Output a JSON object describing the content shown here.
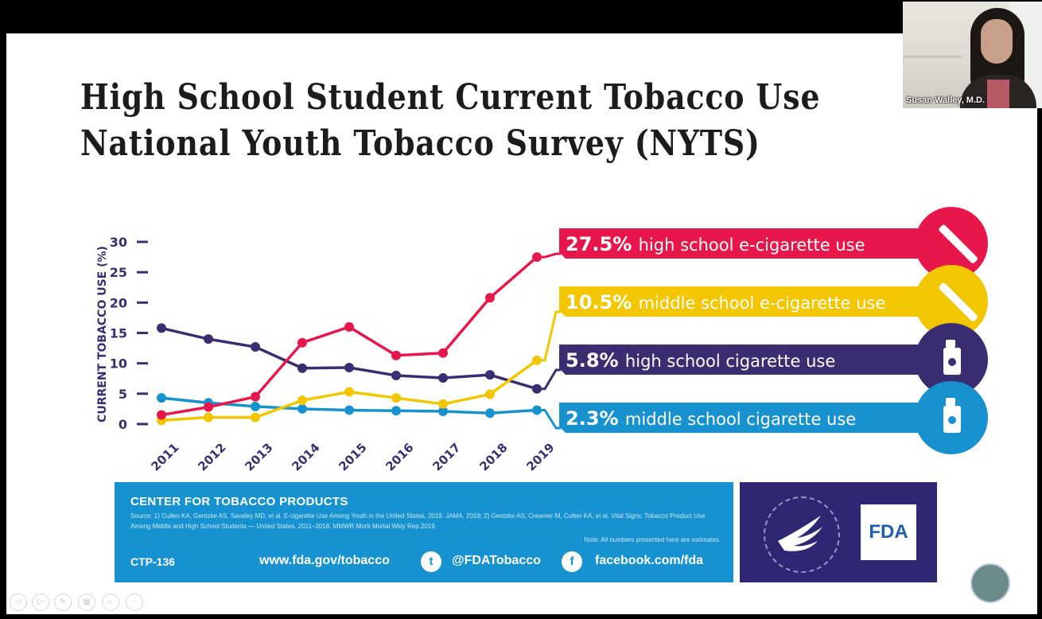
{
  "slide": {
    "title_line1": "High School Student Current Tobacco Use",
    "title_line2": "National Youth Tobacco Survey (NYTS)"
  },
  "video": {
    "participant_name": "Susan Walley, M.D."
  },
  "chart_data": {
    "type": "line",
    "title": "",
    "ylabel": "CURRENT TOBACCO USE (%)",
    "xlabel": "",
    "ylim": [
      0,
      30
    ],
    "yticks": [
      0,
      5,
      10,
      15,
      20,
      25,
      30
    ],
    "x": [
      "2011",
      "2012",
      "2013",
      "2014",
      "2015",
      "2016",
      "2017",
      "2018",
      "2019"
    ],
    "series": [
      {
        "name": "high school e-cigarette use",
        "color": "#e8174b",
        "values": [
          1.5,
          2.8,
          4.5,
          13.4,
          16.0,
          11.3,
          11.7,
          20.8,
          27.5
        ],
        "label_value": "27.5%",
        "icon": "e-cigarette-icon"
      },
      {
        "name": "middle school e-cigarette use",
        "color": "#f2c600",
        "values": [
          0.6,
          1.1,
          1.1,
          3.9,
          5.3,
          4.3,
          3.3,
          4.9,
          10.5
        ],
        "label_value": "10.5%",
        "icon": "e-cigarette-icon"
      },
      {
        "name": "high school cigarette use",
        "color": "#3a2d72",
        "values": [
          15.8,
          14.0,
          12.7,
          9.2,
          9.3,
          8.0,
          7.6,
          8.1,
          5.8
        ],
        "label_value": "5.8%",
        "icon": "cigarette-pack-icon"
      },
      {
        "name": "middle school cigarette use",
        "color": "#1792cf",
        "values": [
          4.3,
          3.5,
          2.9,
          2.5,
          2.3,
          2.2,
          2.1,
          1.8,
          2.3
        ],
        "label_value": "2.3%",
        "icon": "cigarette-pack-icon"
      }
    ]
  },
  "footer": {
    "heading": "CENTER FOR TOBACCO PRODUCTS",
    "source": "Source: 1) Cullen KA, Gentzke AS, Sawdey MD, et al. E-cigarette Use Among Youth in the United States, 2019. JAMA. 2019; 2) Gentzke AS, Creamer M, Cullen KA, et al. Vital Signs: Tobacco Product Use Among Middle and High School Students — United States, 2011–2018. MMWR Morb Mortal Wkly Rep 2019.",
    "note": "Note: All numbers presented here are estimates.",
    "code": "CTP-136",
    "website": "www.fda.gov/tobacco",
    "twitter": "@FDATobacco",
    "facebook": "facebook.com/fda",
    "fda_logo": "FDA"
  },
  "icons": {
    "twitter": "t",
    "facebook": "f"
  }
}
